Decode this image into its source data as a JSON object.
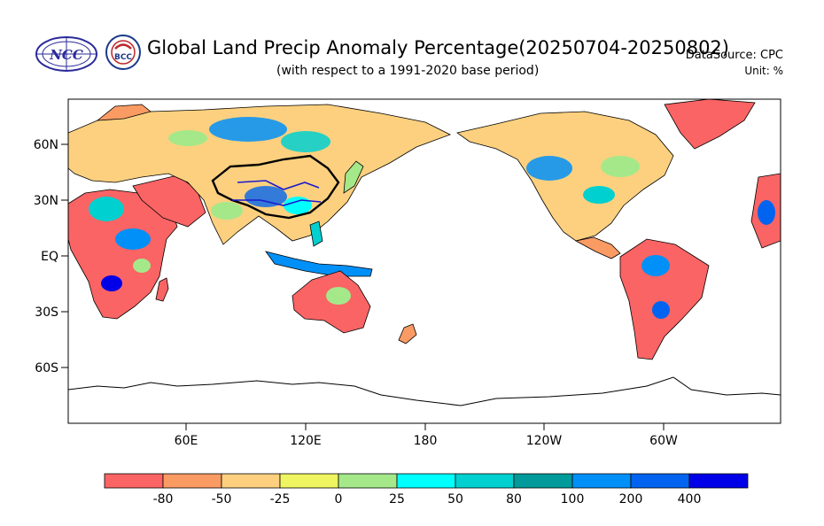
{
  "header": {
    "title": "Global Land Precip Anomaly Percentage(20250704-20250802)",
    "subtitle": "(with respect to a 1991-2020 base period)",
    "datasource": "DataSource:  CPC",
    "unit": "Unit:  %",
    "logo_left_text": "NCC",
    "logo_right_text": "BCC"
  },
  "map": {
    "lat_labels": [
      "60N",
      "30N",
      "EQ",
      "30S",
      "60S"
    ],
    "lon_labels": [
      "60E",
      "120E",
      "180",
      "120W",
      "60W"
    ]
  },
  "colorbar": {
    "labels": [
      "-80",
      "-50",
      "-25",
      "0",
      "25",
      "50",
      "80",
      "100",
      "200",
      "400"
    ],
    "colors": [
      "#fa6464",
      "#fb9b64",
      "#fcd07f",
      "#eef560",
      "#a5e88a",
      "#00ffff",
      "#00d0d0",
      "#009a9a",
      "#0090f8",
      "#0064f0",
      "#0000e8"
    ]
  }
}
